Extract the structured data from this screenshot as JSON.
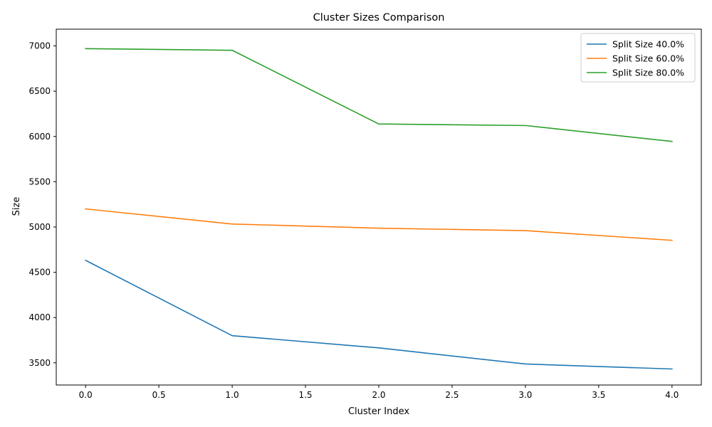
{
  "chart_data": {
    "type": "line",
    "title": "Cluster Sizes Comparison",
    "xlabel": "Cluster Index",
    "ylabel": "Size",
    "x": [
      0,
      1,
      2,
      3,
      4
    ],
    "xlim": [
      -0.2,
      4.2
    ],
    "ylim": [
      3255,
      7185
    ],
    "xticks": [
      0.0,
      0.5,
      1.0,
      1.5,
      2.0,
      2.5,
      3.0,
      3.5,
      4.0
    ],
    "xtick_labels": [
      "0.0",
      "0.5",
      "1.0",
      "1.5",
      "2.0",
      "2.5",
      "3.0",
      "3.5",
      "4.0"
    ],
    "yticks": [
      3500,
      4000,
      4500,
      5000,
      5500,
      6000,
      6500,
      7000
    ],
    "ytick_labels": [
      "3500",
      "4000",
      "4500",
      "5000",
      "5500",
      "6000",
      "6500",
      "7000"
    ],
    "grid": false,
    "legend_position": "top-right",
    "series": [
      {
        "name": "Split Size 40.0%",
        "color": "#1f77b4",
        "values": [
          4632,
          3800,
          3665,
          3487,
          3432
        ]
      },
      {
        "name": "Split Size 60.0%",
        "color": "#ff7f0e",
        "values": [
          5200,
          5033,
          4987,
          4960,
          4853
        ]
      },
      {
        "name": "Split Size 80.0%",
        "color": "#2ca02c",
        "values": [
          6970,
          6952,
          6138,
          6121,
          5945
        ]
      }
    ]
  }
}
